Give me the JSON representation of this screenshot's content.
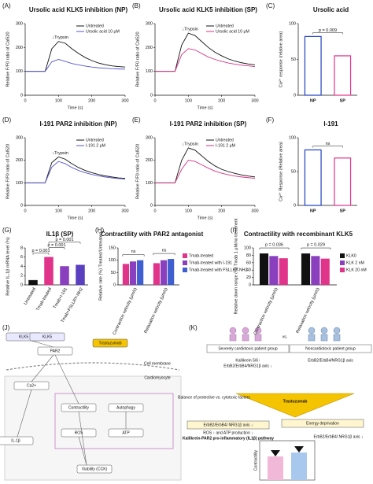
{
  "chart_data": [
    {
      "type": "line",
      "label": "(A)",
      "title": "Ursolic acid KLK5 inhibition (NP)",
      "xlabel": "Time (s)",
      "ylabel": "Relative F/F0 ratio of Cal520",
      "annotation": "↓Trypsin",
      "x": [
        0,
        20,
        40,
        60,
        80,
        100,
        120,
        140,
        160,
        180,
        200,
        220,
        240,
        260,
        280,
        300
      ],
      "xlim": [
        0,
        300
      ],
      "xticks": [
        0,
        100,
        200,
        300
      ],
      "ylim": [
        0,
        300
      ],
      "yticks": [
        0,
        100,
        200,
        300
      ],
      "legend": "upper right",
      "series": [
        {
          "name": "Untreated",
          "color": "#111111",
          "values": [
            100,
            100,
            100,
            100,
            195,
            225,
            218,
            195,
            175,
            158,
            145,
            135,
            128,
            123,
            120,
            118
          ]
        },
        {
          "name": "Ursolic acid 10 μM",
          "color": "#5555cc",
          "values": [
            100,
            100,
            100,
            100,
            140,
            150,
            142,
            133,
            127,
            122,
            118,
            115,
            113,
            111,
            110,
            109
          ]
        }
      ]
    },
    {
      "type": "line",
      "label": "(B)",
      "title": "Ursolic acid KLK5 inhibition (SP)",
      "xlabel": "Time (s)",
      "ylabel": "Relative F/F0 ratio of Cal520",
      "annotation": "↓Trypsin",
      "x": [
        0,
        20,
        40,
        60,
        80,
        100,
        120,
        140,
        160,
        180,
        200,
        220,
        240,
        260,
        280,
        300
      ],
      "xlim": [
        0,
        300
      ],
      "xticks": [
        0,
        100,
        200,
        300
      ],
      "ylim": [
        0,
        300
      ],
      "yticks": [
        0,
        100,
        200,
        300
      ],
      "legend": "upper right",
      "series": [
        {
          "name": "Untreated",
          "color": "#111111",
          "values": [
            100,
            100,
            100,
            100,
            210,
            260,
            250,
            225,
            200,
            180,
            165,
            152,
            143,
            136,
            131,
            127
          ]
        },
        {
          "name": "Ursolic acid 10 μM",
          "color": "#d63384",
          "values": [
            100,
            100,
            100,
            100,
            170,
            195,
            190,
            175,
            160,
            150,
            142,
            135,
            130,
            126,
            123,
            120
          ]
        }
      ]
    },
    {
      "type": "bar",
      "label": "(C)",
      "title": "Ursolic acid",
      "ylabel": "Ca²⁺ response (relative area)",
      "annotations": [
        "p = 0.009"
      ],
      "categories": [
        "NP",
        "SP"
      ],
      "values": [
        82,
        55
      ],
      "colors": [
        "#1f3fbf",
        "#e0338a"
      ],
      "ylim": [
        0,
        100
      ],
      "yticks": [
        0,
        50,
        100
      ]
    },
    {
      "type": "line",
      "label": "(D)",
      "title": "I-191 PAR2 inhibition (NP)",
      "xlabel": "Time (s)",
      "ylabel": "Relative F/F0 ratio of Cal520",
      "annotation": "↓Trypsin",
      "x": [
        0,
        20,
        40,
        60,
        80,
        100,
        120,
        140,
        160,
        180,
        200,
        220,
        240,
        260,
        280,
        300
      ],
      "xlim": [
        0,
        300
      ],
      "xticks": [
        0,
        100,
        200,
        300
      ],
      "ylim": [
        0,
        300
      ],
      "yticks": [
        0,
        100,
        200,
        300
      ],
      "legend": "upper right",
      "series": [
        {
          "name": "Untreated",
          "color": "#111111",
          "values": [
            100,
            100,
            100,
            100,
            190,
            215,
            205,
            185,
            168,
            155,
            145,
            137,
            131,
            126,
            122,
            120
          ]
        },
        {
          "name": "I-191 2 μM",
          "color": "#5555cc",
          "values": [
            100,
            100,
            100,
            100,
            170,
            195,
            185,
            168,
            155,
            145,
            137,
            131,
            126,
            122,
            119,
            117
          ]
        }
      ]
    },
    {
      "type": "line",
      "label": "(E)",
      "title": "I-191 PAR2 inhibition (SP)",
      "xlabel": "Time (s)",
      "ylabel": "Relative F/F0 ratio of Cal520",
      "annotation": "↓Trypsin",
      "x": [
        0,
        20,
        40,
        60,
        80,
        100,
        120,
        140,
        160,
        180,
        200,
        220,
        240,
        260,
        280,
        300
      ],
      "xlim": [
        0,
        300
      ],
      "xticks": [
        0,
        100,
        200,
        300
      ],
      "ylim": [
        0,
        300
      ],
      "yticks": [
        0,
        100,
        200,
        300
      ],
      "legend": "upper right",
      "series": [
        {
          "name": "Untreated",
          "color": "#111111",
          "values": [
            100,
            100,
            100,
            100,
            200,
            255,
            245,
            220,
            195,
            175,
            160,
            150,
            142,
            135,
            130,
            126
          ]
        },
        {
          "name": "I-191 2 μM",
          "color": "#d63384",
          "values": [
            100,
            100,
            100,
            100,
            160,
            200,
            195,
            180,
            165,
            152,
            143,
            136,
            130,
            126,
            123,
            120
          ]
        }
      ]
    },
    {
      "type": "bar",
      "label": "(F)",
      "title": "I-191",
      "ylabel": "Ca²⁺ Response (Relative area)",
      "annotations": [
        "ns"
      ],
      "categories": [
        "NP",
        "SP"
      ],
      "values": [
        82,
        70
      ],
      "colors": [
        "#1f3fbf",
        "#e0338a"
      ],
      "ylim": [
        0,
        100
      ],
      "yticks": [
        0,
        50,
        100
      ]
    },
    {
      "type": "bar",
      "label": "(G)",
      "title": "IL1β (SP)",
      "ylabel": "Relative IL-1β mRNA level (%)",
      "annotations": [
        "p = 0.001",
        "p = 0.001",
        "p = 0.001"
      ],
      "rotate_labels": true,
      "categories": [
        "Untreated",
        "Tmab-treated",
        "Tmab+I-191",
        "Tmab+FSLLRY-NH2"
      ],
      "values": [
        1,
        6,
        4,
        4.3
      ],
      "colors": [
        "#111111",
        "#e0338a",
        "#8a3fbf",
        "#5a3fbf"
      ],
      "ylim": [
        0,
        8
      ],
      "yticks": [
        0,
        2,
        4,
        6,
        8
      ]
    },
    {
      "type": "grouped_bar",
      "label": "(H)",
      "title": "Contractility with PAR2 antagonist",
      "ylabel": "Relative rate (%) Treated/Untreated",
      "annotations": [
        "ns",
        "ns"
      ],
      "legend": "right",
      "categories": [
        "Contraction velocity (μm/s)",
        "Relaxation velocity (μm/s)"
      ],
      "ylim": [
        0,
        150
      ],
      "yticks": [
        0,
        50,
        100,
        150
      ],
      "series": [
        {
          "name": "Tmab-treated",
          "color": "#e0338a",
          "values": [
            85,
            88
          ]
        },
        {
          "name": "Tmab-treated with I-191",
          "color": "#8a3fbf",
          "values": [
            95,
            100
          ]
        },
        {
          "name": "Tmab-treated with FSLLRY-NH2",
          "color": "#3f5fd0",
          "values": [
            100,
            105
          ]
        }
      ]
    },
    {
      "type": "grouped_bar",
      "label": "(I)",
      "title": "Contractility with recombinant KLK5",
      "ylabel": "Relative down range (%) Tmab 1 μM/no treatment",
      "annotations": [
        "p = 0.036",
        "p = 0.029"
      ],
      "legend": "right",
      "categories": [
        "Contraction velocity (μm/s)",
        "Relaxation velocity (μm/s)"
      ],
      "ylim": [
        0,
        100
      ],
      "yticks": [
        0,
        20,
        40,
        60,
        80,
        100
      ],
      "series": [
        {
          "name": "KLK0",
          "color": "#111111",
          "values": [
            85,
            85
          ]
        },
        {
          "name": "KLK 2 nM",
          "color": "#8a3fbf",
          "values": [
            78,
            78
          ]
        },
        {
          "name": "KLK 20 nM",
          "color": "#e0338a",
          "values": [
            72,
            71
          ]
        }
      ]
    }
  ],
  "diagram_j": {
    "label": "(J)",
    "nodes": [
      "KLK5",
      "KLK5",
      "PAR2",
      "Trastuzumab",
      "Ca2+",
      "IL-1β",
      "Contractility",
      "Autophagy",
      "ATP",
      "ROS",
      "Viability (CCK)",
      "Cardiomyocyte",
      "Cell membrane"
    ]
  },
  "diagram_k": {
    "label": "(K)",
    "nodes": [
      "Severely cardiotoxic patient group",
      "vs.",
      "Noncardiotoxic patient group",
      "Kallikrein 5/6↑",
      "ErbB2/ErbB4/NRG1β axis ↓",
      "ErbB2/ErbB4/NRG1β axis",
      "Balance of protective vs. cytotoxic factors",
      "Trastuzumab",
      "ErbB2/ErbB4/ NRG1β axis ↓",
      "Energy deprivation",
      "ROS ↑ and ATP production ↓",
      "Kallikrein-PAR2 pro-inflammatory (IL1β) pathway",
      "ErbB2/ErbB4/ NRG1β axis ↓",
      "Contractility"
    ]
  }
}
